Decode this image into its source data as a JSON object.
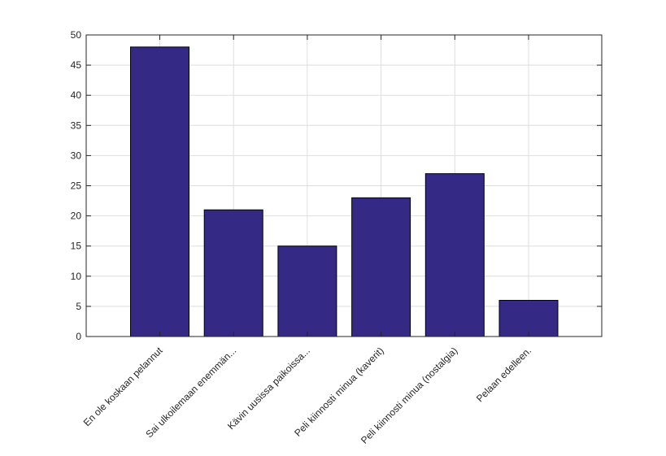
{
  "chart_data": {
    "type": "bar",
    "categories": [
      "En ole koskaan pelannut",
      "Sai ulkoilemaan enemmän...",
      "Kävin uusissa paikoissa...",
      "Peli kiinnosti minua (kaverit)",
      "Peli kiinnosti minua (nostalgia)",
      "Pelaan edelleen."
    ],
    "values": [
      48,
      21,
      15,
      23,
      27,
      6
    ],
    "ylim": [
      0,
      50
    ],
    "yticks": [
      0,
      5,
      10,
      15,
      20,
      25,
      30,
      35,
      40,
      45,
      50
    ],
    "grid": true,
    "bar_color": "#342a86",
    "bar_edge_color": "#000000"
  }
}
